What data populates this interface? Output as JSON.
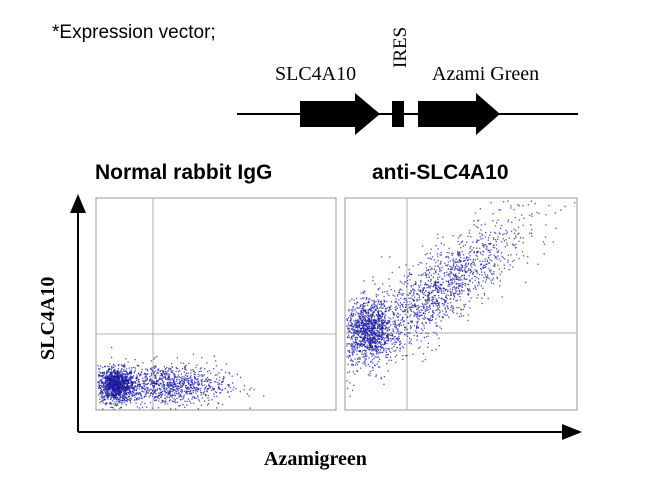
{
  "header": {
    "caption": "*Expression vector;"
  },
  "construct": {
    "elements": [
      {
        "label": "SLC4A10",
        "type": "gene-arrow"
      },
      {
        "label": "IRES",
        "type": "ires-box"
      },
      {
        "label": "Azami Green",
        "type": "gene-arrow"
      }
    ]
  },
  "chart_data": {
    "type": "scatter",
    "subtype": "flow-cytometry-density-dot-plot",
    "xlabel": "Azamigreen",
    "ylabel": "SLC4A10",
    "grid": false,
    "colors": {
      "dots": "#1a1a9c",
      "frame": "#999999",
      "quadrant": "#b0b0b0",
      "axis": "#000000"
    },
    "panels": [
      {
        "title": "Normal rabbit IgG",
        "quadrant_split": {
          "x": 0.18,
          "y": 0.27
        },
        "populations": [
          {
            "center": [
              0.08,
              0.12
            ],
            "spread": [
              0.04,
              0.04
            ],
            "share": 0.55
          },
          {
            "center": [
              0.3,
              0.12
            ],
            "spread": [
              0.12,
              0.05
            ],
            "share": 0.45
          }
        ],
        "event_count": 2200
      },
      {
        "title": "anti-SLC4A10",
        "quadrant_split": {
          "x": 0.18,
          "y": 0.27
        },
        "populations": [
          {
            "center": [
              0.1,
              0.38
            ],
            "spread": [
              0.05,
              0.07
            ],
            "share": 0.4
          },
          {
            "center": [
              0.38,
              0.55
            ],
            "spread": [
              0.2,
              0.16
            ],
            "share": 0.6
          }
        ],
        "event_count": 2600
      }
    ]
  }
}
